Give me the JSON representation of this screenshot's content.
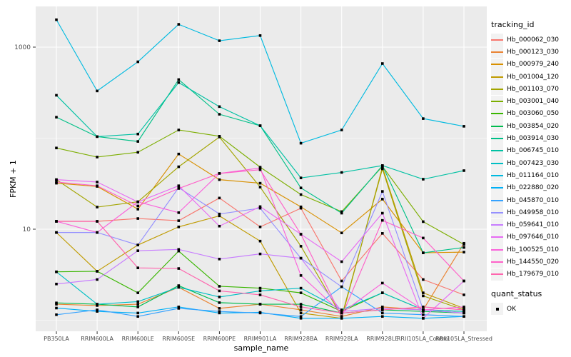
{
  "chart_data": {
    "type": "line",
    "xlabel": "sample_name",
    "ylabel": "FPKM + 1",
    "y_scale": "log10",
    "y_tick_labels": [
      "1000",
      "10"
    ],
    "y_tick_values": [
      1000,
      10
    ],
    "y_minor_values": [
      100,
      1
    ],
    "legend_title": "tracking_id",
    "legend_position": "right",
    "quant_legend": {
      "title": "quant_status",
      "items": [
        {
          "label": "OK",
          "marker": "black-square"
        }
      ]
    },
    "panel_bg": "#EBEBEB",
    "grid_color": "#FFFFFF",
    "point_color": "#000000",
    "tick_text_color": "#4D4D4D",
    "categories": [
      "PB350LA",
      "RRIM600LA",
      "RRIM600LE",
      "RRIM600SE",
      "RRIM600PE",
      "RRIM901LA",
      "RRIM928BA",
      "RRIM928LA",
      "RRIM928LE",
      "RRII105LA_Control",
      "RRII105LA_Stressed"
    ],
    "series": [
      {
        "name": "Hb_000062_030",
        "color": "#F8766D",
        "values": [
          12.2,
          12.2,
          13.1,
          12.4,
          22,
          10.6,
          17,
          2.7,
          9,
          2.8,
          1.9
        ]
      },
      {
        "name": "Hb_000123_030",
        "color": "#EA8331",
        "values": [
          1.5,
          1.45,
          1.5,
          2.3,
          1.35,
          1.5,
          1.3,
          1.1,
          1.4,
          1.3,
          7.0
        ]
      },
      {
        "name": "Hb_000979_240",
        "color": "#D89000",
        "values": [
          32,
          29.5,
          16.6,
          67,
          35,
          32,
          17.6,
          9.1,
          21.4,
          5.5,
          5.6
        ]
      },
      {
        "name": "Hb_001004_120",
        "color": "#C09B00",
        "values": [
          9.2,
          3.45,
          6.7,
          10.6,
          14,
          7.4,
          1.2,
          1.05,
          48,
          2.0,
          1.35
        ]
      },
      {
        "name": "Hb_001103_070",
        "color": "#A3A500",
        "values": [
          35,
          17.5,
          20,
          48.5,
          103,
          29,
          6.5,
          1.1,
          46,
          1.85,
          1.3
        ]
      },
      {
        "name": "Hb_003001_040",
        "color": "#7CAE00",
        "values": [
          78,
          62,
          70,
          123,
          105,
          48,
          24,
          15.6,
          49,
          12.1,
          6.8
        ]
      },
      {
        "name": "Hb_003060_050",
        "color": "#39B600",
        "values": [
          3.4,
          3.45,
          2.0,
          5.75,
          2.36,
          2.25,
          2.0,
          1.25,
          2.0,
          1.3,
          1.25
        ]
      },
      {
        "name": "Hb_003854_020",
        "color": "#00BB4E",
        "values": [
          1.55,
          1.5,
          1.4,
          2.4,
          1.56,
          1.5,
          1.5,
          1.2,
          1.3,
          1.25,
          1.2
        ]
      },
      {
        "name": "Hb_003914_030",
        "color": "#00C087",
        "values": [
          170,
          104,
          92,
          440,
          183,
          137,
          28.4,
          15,
          50,
          5.5,
          6.3
        ]
      },
      {
        "name": "Hb_006745_010",
        "color": "#00C1A3",
        "values": [
          296,
          104,
          111,
          408,
          222,
          137,
          36.6,
          42,
          50,
          35.4,
          44
        ]
      },
      {
        "name": "Hb_007423_030",
        "color": "#00BFC4",
        "values": [
          3.4,
          1.5,
          1.6,
          2.3,
          1.8,
          2.1,
          2.25,
          1.3,
          2.0,
          1.3,
          1.25
        ]
      },
      {
        "name": "Hb_011164_010",
        "color": "#00BAE0",
        "values": [
          2000,
          330,
          690,
          1780,
          1175,
          1340,
          88,
          123,
          660,
          164,
          135
        ]
      },
      {
        "name": "Hb_022880_020",
        "color": "#00B0F6",
        "values": [
          1.36,
          1.25,
          1.2,
          1.4,
          1.2,
          1.22,
          1.05,
          1.05,
          1.1,
          1.05,
          1.1
        ]
      },
      {
        "name": "Hb_045870_010",
        "color": "#35A2FF",
        "values": [
          1.15,
          1.3,
          1.1,
          1.35,
          1.25,
          1.2,
          1.1,
          2.33,
          1.2,
          1.15,
          1.1
        ]
      },
      {
        "name": "Hb_049958_010",
        "color": "#9590FF",
        "values": [
          9.2,
          9.2,
          6.7,
          28.6,
          14.7,
          17,
          4.8,
          2.33,
          26,
          1.3,
          1.2
        ]
      },
      {
        "name": "Hb_059641_010",
        "color": "#C77CFF",
        "values": [
          2.5,
          2.8,
          5.8,
          6.0,
          4.7,
          5.35,
          4.8,
          1.25,
          1.35,
          1.3,
          1.2
        ]
      },
      {
        "name": "Hb_097646_010",
        "color": "#E76BF3",
        "values": [
          35,
          33,
          19.9,
          30,
          10.8,
          17.7,
          8.8,
          4.4,
          15,
          1.05,
          2.7
        ]
      },
      {
        "name": "Hb_100525_010",
        "color": "#FA62DB",
        "values": [
          12.2,
          9.2,
          20,
          15.2,
          41,
          47,
          3.1,
          1.2,
          2.56,
          1.3,
          1.4
        ]
      },
      {
        "name": "Hb_144550_020",
        "color": "#FF61C9",
        "values": [
          33,
          30,
          18,
          28,
          41,
          45,
          8.8,
          1.1,
          12.5,
          8.0,
          2.7
        ]
      },
      {
        "name": "Hb_179679_010",
        "color": "#FF65AE",
        "values": [
          12.2,
          12.2,
          3.76,
          3.7,
          2.1,
          1.9,
          1.4,
          1.2,
          1.3,
          1.4,
          1.3
        ]
      }
    ]
  }
}
